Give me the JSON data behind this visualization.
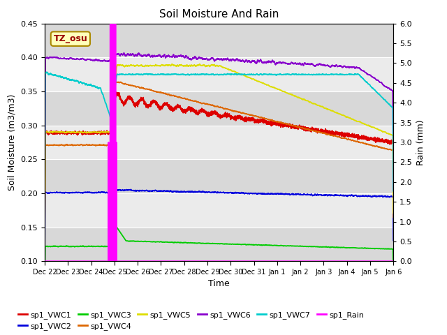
{
  "title": "Soil Moisture And Rain",
  "xlabel": "Time",
  "ylabel_left": "Soil Moisture (m3/m3)",
  "ylabel_right": "Rain (mm)",
  "annotation": "TZ_osu",
  "ylim_left": [
    0.1,
    0.45
  ],
  "ylim_right": [
    0.0,
    6.0
  ],
  "yticks_left": [
    0.1,
    0.15,
    0.2,
    0.25,
    0.3,
    0.35,
    0.4,
    0.45
  ],
  "yticks_right": [
    0.0,
    0.5,
    1.0,
    1.5,
    2.0,
    2.5,
    3.0,
    3.5,
    4.0,
    4.5,
    5.0,
    5.5,
    6.0
  ],
  "colors": {
    "VWC1": "#dd0000",
    "VWC2": "#0000dd",
    "VWC3": "#00cc00",
    "VWC4": "#dd6600",
    "VWC5": "#dddd00",
    "VWC6": "#8800cc",
    "VWC7": "#00cccc",
    "Rain": "#ff00ff"
  },
  "bg_stripe_color": "#d8d8d8",
  "bg_white": "#f0f0f0",
  "tick_labels": [
    "Dec 22",
    "Dec 23",
    "Dec 24",
    "Dec 25",
    "Dec 26",
    "Dec 27",
    "Dec 28",
    "Dec 29",
    "Dec 30",
    "Dec 31",
    "Jan 1",
    "Jan 2",
    "Jan 3",
    "Jan 4",
    "Jan 5",
    "Jan 6"
  ],
  "legend_labels": [
    "sp1_VWC1",
    "sp1_VWC2",
    "sp1_VWC3",
    "sp1_VWC4",
    "sp1_VWC5",
    "sp1_VWC6",
    "sp1_VWC7",
    "sp1_Rain"
  ]
}
